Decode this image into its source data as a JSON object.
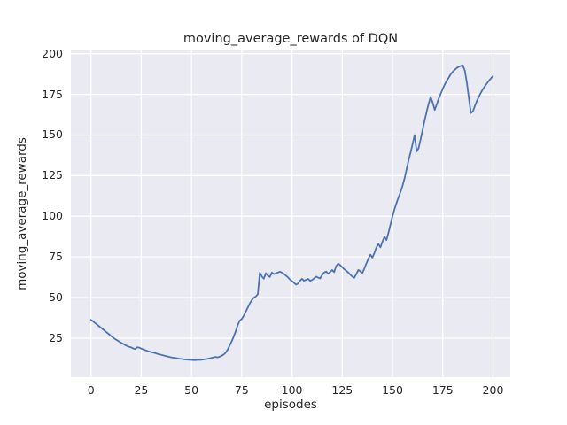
{
  "figure": {
    "background_color": "#ffffff",
    "plot_background_color": "#eaeaf2",
    "grid_color": "#ffffff",
    "text_color": "#262626"
  },
  "chart_data": {
    "type": "line",
    "title": "moving_average_rewards of DQN",
    "xlabel": "episodes",
    "ylabel": "moving_average_rewards",
    "x_ticks": [
      0,
      25,
      50,
      75,
      100,
      125,
      150,
      175,
      200
    ],
    "y_ticks": [
      25,
      50,
      75,
      100,
      125,
      150,
      175,
      200
    ],
    "xlim": [
      -10,
      208.6
    ],
    "ylim": [
      1,
      202
    ],
    "grid": true,
    "legend_position": "none",
    "line_color": "#4c72b0",
    "line_width": 1.8,
    "series": [
      {
        "name": "moving_average_rewards",
        "points": [
          [
            0,
            36.3
          ],
          [
            1,
            35.4
          ],
          [
            2,
            34.4
          ],
          [
            3,
            33.4
          ],
          [
            4,
            32.4
          ],
          [
            5,
            31.4
          ],
          [
            6,
            30.4
          ],
          [
            7,
            29.4
          ],
          [
            8,
            28.4
          ],
          [
            9,
            27.4
          ],
          [
            10,
            26.4
          ],
          [
            11,
            25.4
          ],
          [
            12,
            24.5
          ],
          [
            13,
            23.7
          ],
          [
            14,
            22.9
          ],
          [
            15,
            22.2
          ],
          [
            16,
            21.5
          ],
          [
            17,
            20.8
          ],
          [
            18,
            20.2
          ],
          [
            19,
            19.7
          ],
          [
            20,
            19.3
          ],
          [
            21,
            18.7
          ],
          [
            22,
            18.3
          ],
          [
            23,
            19.4
          ],
          [
            24,
            19.2
          ],
          [
            25,
            18.6
          ],
          [
            26,
            18.1
          ],
          [
            27,
            17.6
          ],
          [
            28,
            17.2
          ],
          [
            29,
            16.8
          ],
          [
            30,
            16.4
          ],
          [
            31,
            16.1
          ],
          [
            32,
            15.8
          ],
          [
            33,
            15.4
          ],
          [
            34,
            15.1
          ],
          [
            35,
            14.8
          ],
          [
            36,
            14.4
          ],
          [
            37,
            14.1
          ],
          [
            38,
            13.8
          ],
          [
            39,
            13.5
          ],
          [
            40,
            13.2
          ],
          [
            41,
            13.0
          ],
          [
            42,
            12.8
          ],
          [
            43,
            12.6
          ],
          [
            44,
            12.4
          ],
          [
            45,
            12.2
          ],
          [
            46,
            12.0
          ],
          [
            47,
            11.9
          ],
          [
            48,
            11.8
          ],
          [
            49,
            11.7
          ],
          [
            50,
            11.6
          ],
          [
            51,
            11.5
          ],
          [
            52,
            11.5
          ],
          [
            53,
            11.6
          ],
          [
            54,
            11.6
          ],
          [
            55,
            11.7
          ],
          [
            56,
            11.9
          ],
          [
            57,
            12.1
          ],
          [
            58,
            12.3
          ],
          [
            59,
            12.6
          ],
          [
            60,
            12.9
          ],
          [
            61,
            13.2
          ],
          [
            62,
            13.5
          ],
          [
            63,
            13.2
          ],
          [
            64,
            13.6
          ],
          [
            65,
            14.2
          ],
          [
            66,
            14.9
          ],
          [
            67,
            16.1
          ],
          [
            68,
            18.0
          ],
          [
            69,
            20.4
          ],
          [
            70,
            23.0
          ],
          [
            71,
            26.0
          ],
          [
            72,
            29.4
          ],
          [
            73,
            33.0
          ],
          [
            74,
            35.8
          ],
          [
            75,
            36.8
          ],
          [
            76,
            38.8
          ],
          [
            77,
            41.3
          ],
          [
            78,
            43.8
          ],
          [
            79,
            46.3
          ],
          [
            80,
            48.4
          ],
          [
            81,
            49.9
          ],
          [
            82,
            50.7
          ],
          [
            83,
            52.0
          ],
          [
            84,
            65.4
          ],
          [
            85,
            62.9
          ],
          [
            86,
            61.6
          ],
          [
            87,
            65.0
          ],
          [
            88,
            63.4
          ],
          [
            89,
            62.6
          ],
          [
            90,
            65.4
          ],
          [
            91,
            64.4
          ],
          [
            92,
            64.9
          ],
          [
            93,
            65.4
          ],
          [
            94,
            65.9
          ],
          [
            95,
            65.4
          ],
          [
            96,
            64.5
          ],
          [
            97,
            63.5
          ],
          [
            98,
            62.4
          ],
          [
            99,
            61.1
          ],
          [
            100,
            60.1
          ],
          [
            101,
            59.0
          ],
          [
            102,
            57.9
          ],
          [
            103,
            58.7
          ],
          [
            104,
            60.4
          ],
          [
            105,
            61.5
          ],
          [
            106,
            60.3
          ],
          [
            107,
            60.9
          ],
          [
            108,
            61.5
          ],
          [
            109,
            60.3
          ],
          [
            110,
            60.8
          ],
          [
            111,
            61.8
          ],
          [
            112,
            62.9
          ],
          [
            113,
            62.2
          ],
          [
            114,
            61.8
          ],
          [
            115,
            63.9
          ],
          [
            116,
            65.4
          ],
          [
            117,
            66.0
          ],
          [
            118,
            64.6
          ],
          [
            119,
            65.7
          ],
          [
            120,
            66.9
          ],
          [
            121,
            65.6
          ],
          [
            122,
            69.4
          ],
          [
            123,
            70.9
          ],
          [
            124,
            69.9
          ],
          [
            125,
            68.7
          ],
          [
            126,
            67.4
          ],
          [
            127,
            66.4
          ],
          [
            128,
            65.4
          ],
          [
            129,
            64.1
          ],
          [
            130,
            62.9
          ],
          [
            131,
            62.1
          ],
          [
            132,
            64.4
          ],
          [
            133,
            67.0
          ],
          [
            134,
            66.1
          ],
          [
            135,
            65.1
          ],
          [
            136,
            67.9
          ],
          [
            137,
            70.9
          ],
          [
            138,
            73.9
          ],
          [
            139,
            76.4
          ],
          [
            140,
            74.6
          ],
          [
            141,
            77.4
          ],
          [
            142,
            80.9
          ],
          [
            143,
            82.9
          ],
          [
            144,
            80.9
          ],
          [
            145,
            84.4
          ],
          [
            146,
            87.4
          ],
          [
            147,
            85.4
          ],
          [
            148,
            89.9
          ],
          [
            149,
            95.0
          ],
          [
            150,
            99.9
          ],
          [
            151,
            104.4
          ],
          [
            152,
            108.2
          ],
          [
            153,
            111.6
          ],
          [
            154,
            114.9
          ],
          [
            155,
            118.9
          ],
          [
            156,
            123.4
          ],
          [
            157,
            128.9
          ],
          [
            158,
            134.4
          ],
          [
            159,
            139.4
          ],
          [
            160,
            144.4
          ],
          [
            161,
            149.9
          ],
          [
            162,
            139.9
          ],
          [
            163,
            141.9
          ],
          [
            164,
            147.4
          ],
          [
            165,
            153.4
          ],
          [
            166,
            158.9
          ],
          [
            167,
            164.4
          ],
          [
            168,
            169.4
          ],
          [
            169,
            173.4
          ],
          [
            170,
            169.9
          ],
          [
            171,
            165.4
          ],
          [
            172,
            168.9
          ],
          [
            173,
            172.4
          ],
          [
            174,
            175.4
          ],
          [
            175,
            178.4
          ],
          [
            176,
            181.1
          ],
          [
            177,
            183.4
          ],
          [
            178,
            185.4
          ],
          [
            179,
            187.4
          ],
          [
            180,
            188.9
          ],
          [
            181,
            190.2
          ],
          [
            182,
            191.2
          ],
          [
            183,
            192.0
          ],
          [
            184,
            192.5
          ],
          [
            185,
            192.8
          ],
          [
            186,
            189.5
          ],
          [
            187,
            182.0
          ],
          [
            188,
            172.5
          ],
          [
            189,
            163.5
          ],
          [
            190,
            164.5
          ],
          [
            191,
            168.0
          ],
          [
            192,
            171.0
          ],
          [
            193,
            173.7
          ],
          [
            194,
            176.1
          ],
          [
            195,
            178.2
          ],
          [
            196,
            180.1
          ],
          [
            197,
            181.8
          ],
          [
            198,
            183.4
          ],
          [
            199,
            184.9
          ],
          [
            200,
            186.3
          ]
        ]
      }
    ]
  }
}
